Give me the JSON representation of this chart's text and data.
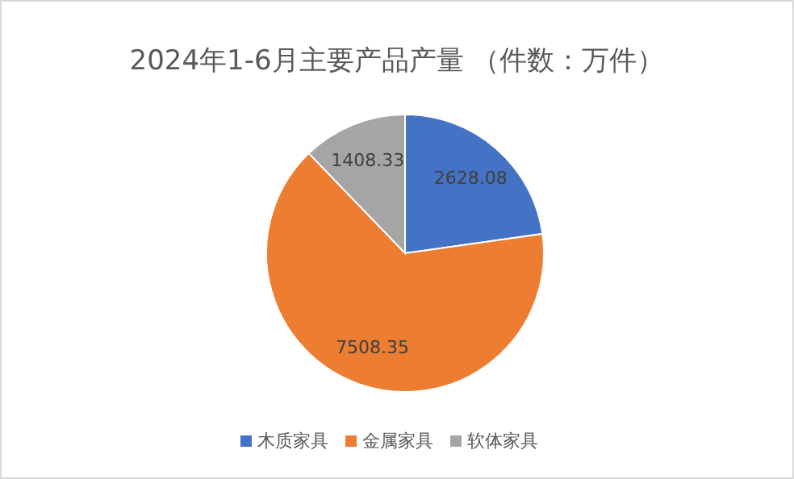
{
  "chart_data": {
    "type": "pie",
    "title": "2024年1-6月主要产品产量 （件数：万件）",
    "categories": [
      "木质家具",
      "金属家具",
      "软体家具"
    ],
    "values": [
      2628.08,
      7508.35,
      1408.33
    ],
    "colors": [
      "#4472c4",
      "#ed7d31",
      "#a5a5a5"
    ],
    "data_labels": true,
    "legend": "bottom"
  }
}
